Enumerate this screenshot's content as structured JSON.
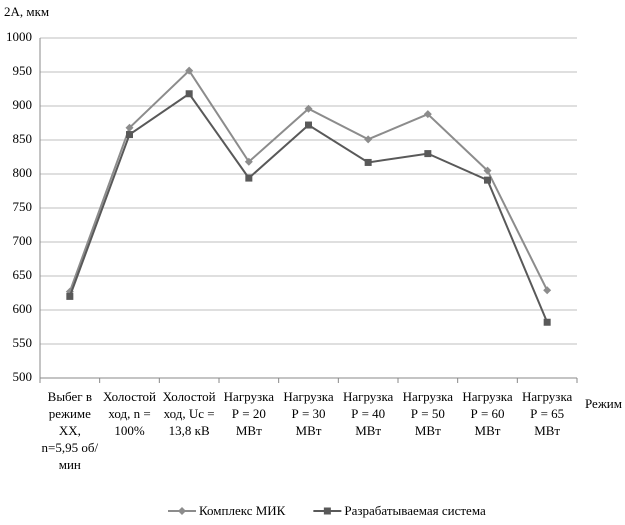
{
  "chart_data": {
    "type": "line",
    "y_label": "2А, мкм",
    "x_label": "Режим",
    "categories": [
      "Выбег в режиме ХХ, n=5,95 об/мин",
      "Холостой ход, n = 100%",
      "Холостой ход, Uc = 13,8 кВ",
      "Нагрузка Р = 20 МВт",
      "Нагрузка Р = 30 МВт",
      "Нагрузка Р = 40 МВт",
      "Нагрузка Р = 50 МВт",
      "Нагрузка Р = 60 МВт",
      "Нагрузка Р = 65 МВт"
    ],
    "series": [
      {
        "name": "Комплекс МИК",
        "color": "#8c8c8c",
        "marker": "diamond",
        "values": [
          627,
          868,
          952,
          818,
          896,
          851,
          888,
          805,
          629
        ]
      },
      {
        "name": "Разрабатываемая система",
        "color": "#595959",
        "marker": "square",
        "values": [
          620,
          858,
          918,
          794,
          872,
          817,
          830,
          791,
          582
        ]
      }
    ],
    "ylim": [
      500,
      1000
    ],
    "yticks": [
      500,
      550,
      600,
      650,
      700,
      750,
      800,
      850,
      900,
      950,
      1000
    ],
    "grid": true,
    "legend": "bottom"
  }
}
